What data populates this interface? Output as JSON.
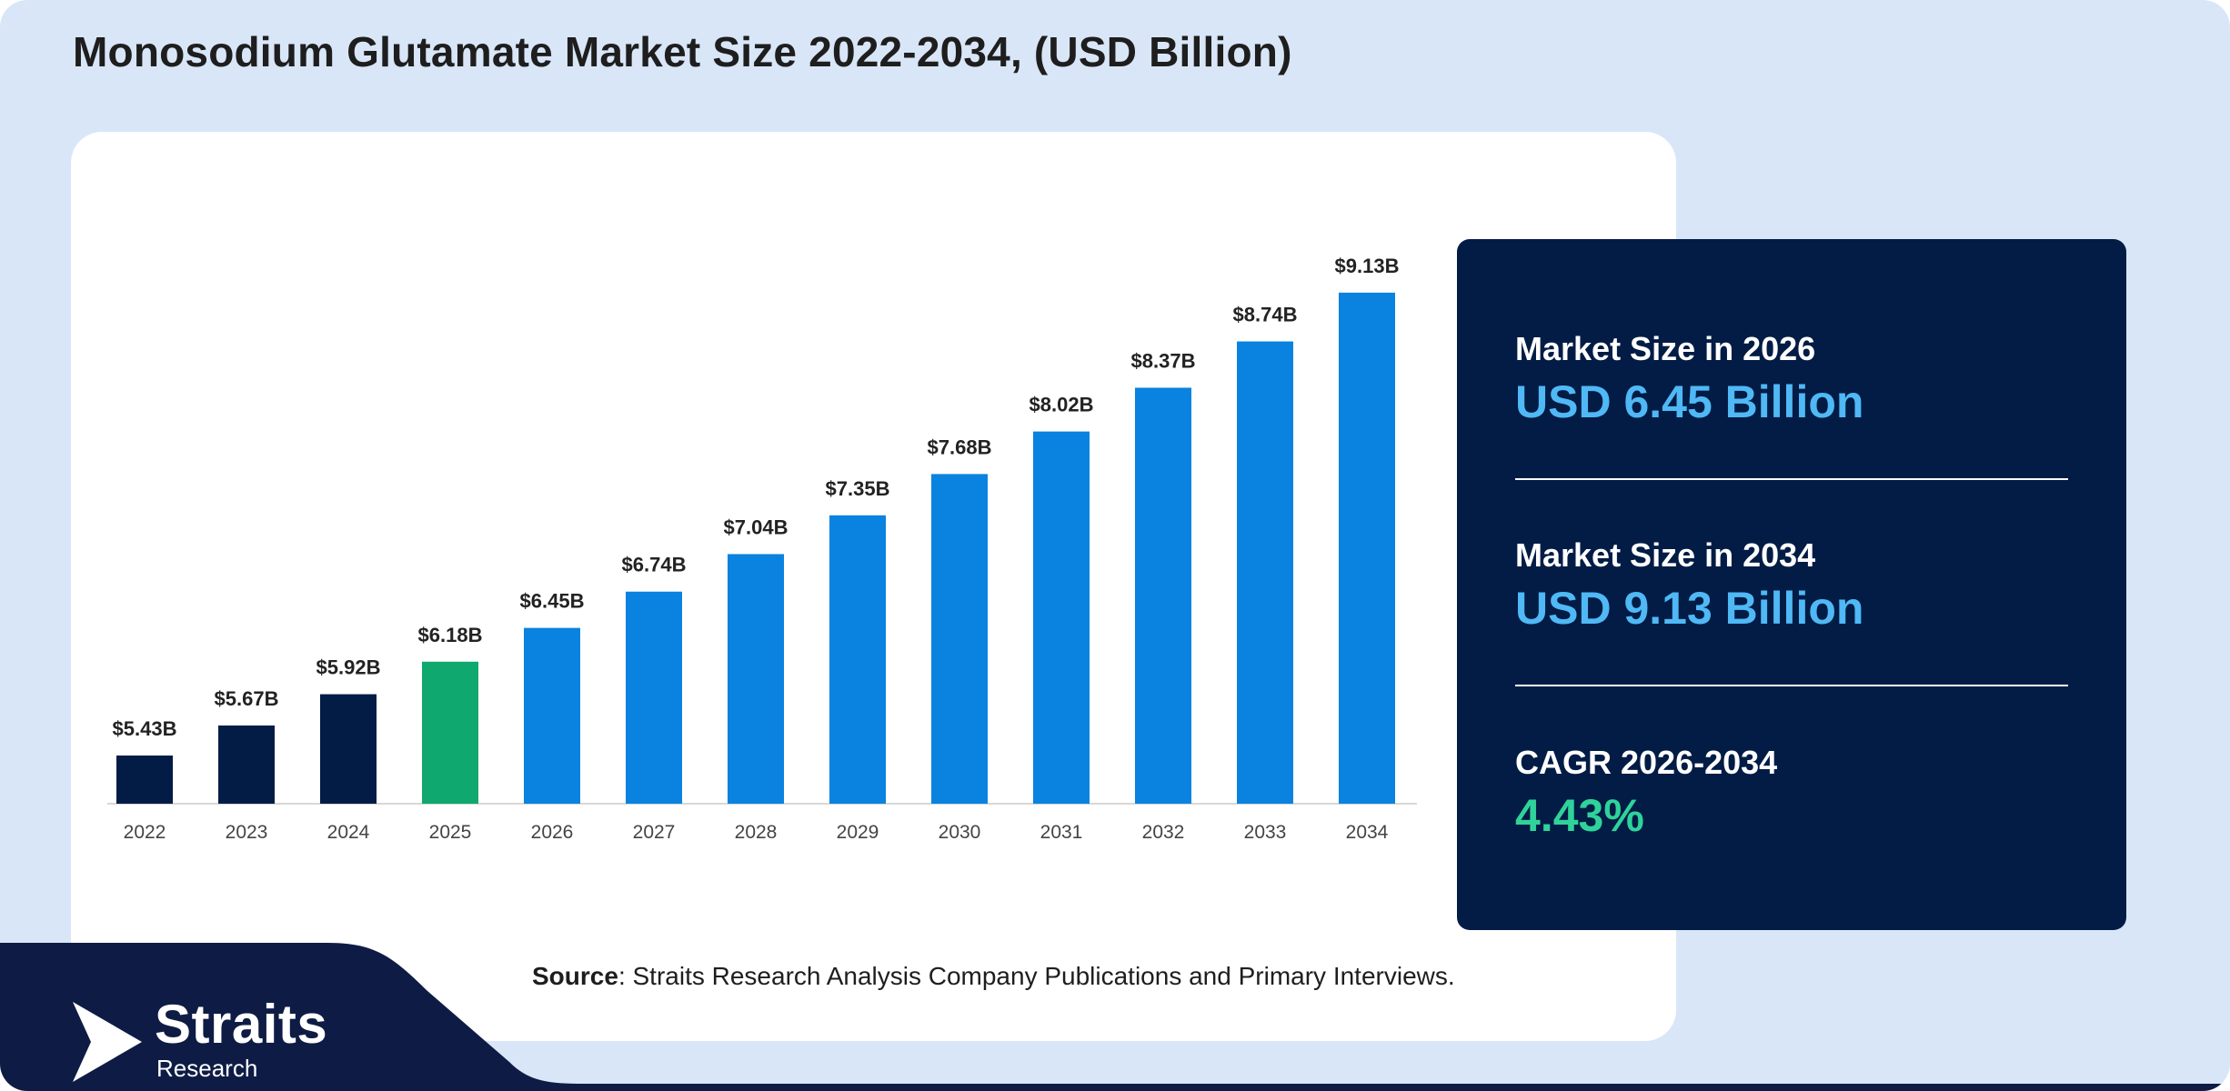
{
  "title": "Monosodium Glutamate Market Size 2022-2034, (USD Billion)",
  "colors": {
    "historic": "#021c45",
    "base_year": "#0fa86e",
    "forecast": "#0a82e0",
    "panel": "#021c45",
    "accent_value": "#4fb8f5",
    "accent_cagr": "#2fd39a"
  },
  "chart_data": {
    "type": "bar",
    "categories": [
      "2022",
      "2023",
      "2024",
      "2025",
      "2026",
      "2027",
      "2028",
      "2029",
      "2030",
      "2031",
      "2032",
      "2033",
      "2034"
    ],
    "values": [
      5.43,
      5.67,
      5.92,
      6.18,
      6.45,
      6.74,
      7.04,
      7.35,
      7.68,
      8.02,
      8.37,
      8.74,
      9.13
    ],
    "data_labels": [
      "$5.43B",
      "$5.67B",
      "$5.92B",
      "$6.18B",
      "$6.45B",
      "$6.74B",
      "$7.04B",
      "$7.35B",
      "$7.68B",
      "$8.02B",
      "$8.37B",
      "$8.74B",
      "$9.13B"
    ],
    "bar_groups": [
      "historic",
      "historic",
      "historic",
      "base_year",
      "forecast",
      "forecast",
      "forecast",
      "forecast",
      "forecast",
      "forecast",
      "forecast",
      "forecast",
      "forecast"
    ],
    "title": "Monosodium Glutamate Market Size 2022-2034, (USD Billion)",
    "xlabel": "",
    "ylabel": "",
    "grid": false,
    "legend": "none"
  },
  "stats": [
    {
      "label": "Market Size in 2026",
      "value": "USD 6.45 Billion"
    },
    {
      "label": "Market Size in 2034",
      "value": "USD 9.13 Billion"
    },
    {
      "label": "CAGR 2026-2034",
      "value": "4.43%"
    }
  ],
  "source": {
    "prefix": "Source",
    "text": ": Straits Research Analysis Company Publications and Primary Interviews."
  },
  "logo": {
    "name": "Straits",
    "sub": "Research"
  }
}
